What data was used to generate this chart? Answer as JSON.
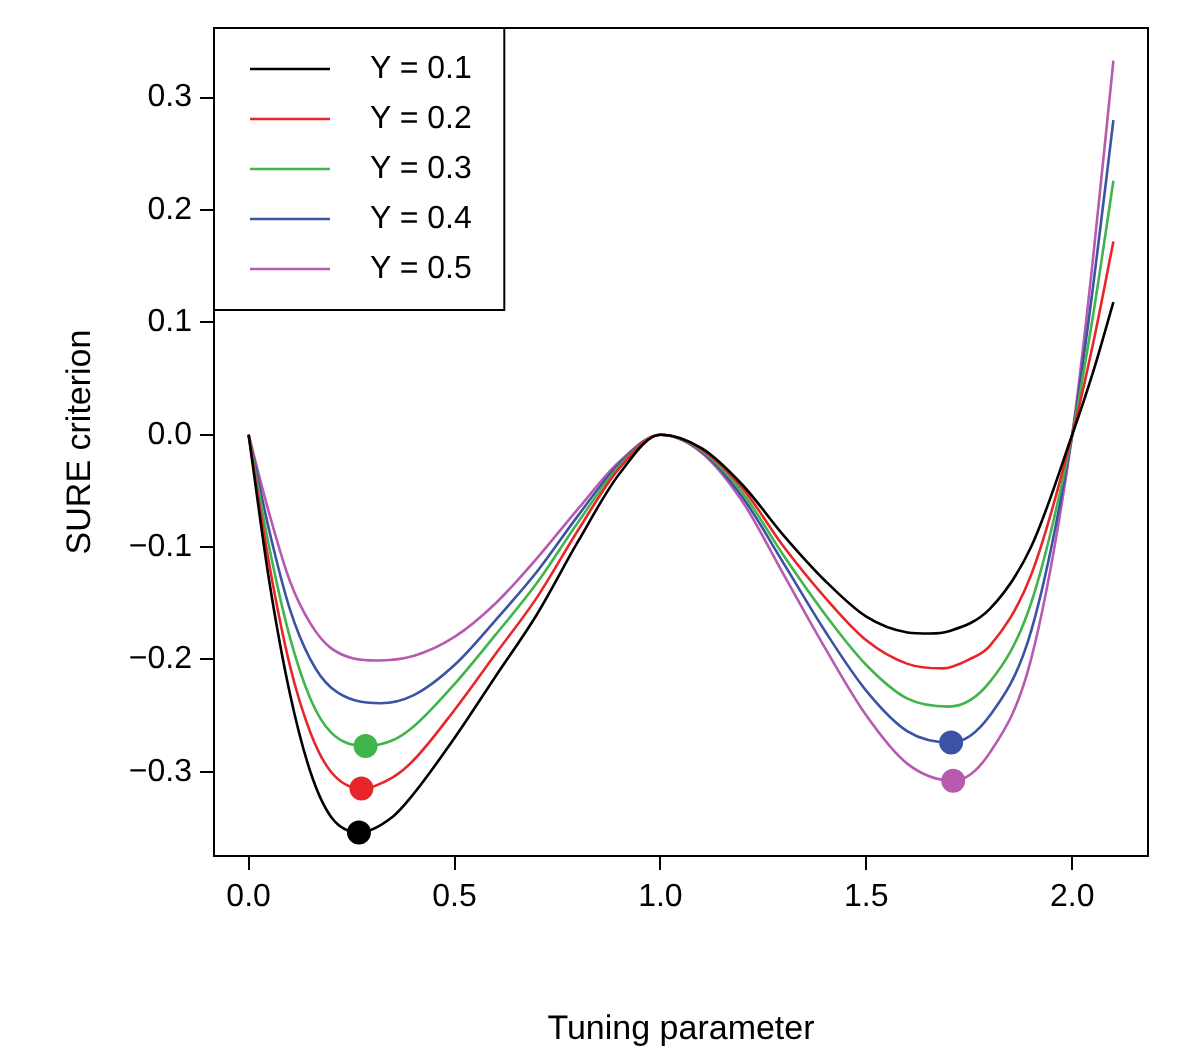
{
  "chart_data": {
    "type": "line",
    "xlabel": "Tuning parameter",
    "ylabel": "SURE criterion",
    "xlim": [
      -0.084,
      2.184
    ],
    "ylim": [
      -0.375,
      0.362
    ],
    "xticks": [
      {
        "value": 0,
        "label": "0.0"
      },
      0.5,
      {
        "value": 1,
        "label": "1.0"
      },
      1.5,
      {
        "value": 2,
        "label": "2.0"
      }
    ],
    "yticks": [
      {
        "value": -0.3,
        "label": "−0.3"
      },
      {
        "value": -0.2,
        "label": "−0.2"
      },
      {
        "value": -0.1,
        "label": "−0.1"
      },
      {
        "value": 0,
        "label": "0.0"
      },
      0.1,
      0.2,
      0.3
    ],
    "grid": false,
    "legend": "top left",
    "series": [
      {
        "name": "Y = 0.1",
        "color": "#000000",
        "x": [
          0,
          0.05,
          0.1,
          0.15,
          0.2,
          0.268,
          0.35,
          0.4,
          0.5,
          0.6,
          0.7,
          0.8,
          0.9,
          1,
          1.1,
          1.2,
          1.3,
          1.4,
          1.5,
          1.6,
          1.654,
          1.7,
          1.8,
          1.9,
          2,
          2.05,
          2.1
        ],
        "values": [
          0,
          -0.13,
          -0.23,
          -0.3,
          -0.34,
          -0.354,
          -0.34,
          -0.32,
          -0.27,
          -0.215,
          -0.16,
          -0.095,
          -0.035,
          0,
          -0.012,
          -0.045,
          -0.09,
          -0.13,
          -0.162,
          -0.176,
          -0.177,
          -0.175,
          -0.155,
          -0.1,
          0,
          0.055,
          0.118
        ]
      },
      {
        "name": "Y = 0.2",
        "color": "#e8262a",
        "x": [
          0,
          0.05,
          0.1,
          0.15,
          0.2,
          0.274,
          0.35,
          0.4,
          0.5,
          0.6,
          0.7,
          0.8,
          0.9,
          1,
          1.1,
          1.2,
          1.3,
          1.4,
          1.5,
          1.6,
          1.685,
          1.75,
          1.8,
          1.9,
          2,
          2.05,
          2.1
        ],
        "values": [
          0,
          -0.115,
          -0.205,
          -0.265,
          -0.3,
          -0.315,
          -0.305,
          -0.29,
          -0.245,
          -0.195,
          -0.145,
          -0.085,
          -0.03,
          0,
          -0.013,
          -0.048,
          -0.1,
          -0.145,
          -0.183,
          -0.204,
          -0.208,
          -0.2,
          -0.188,
          -0.125,
          0,
          0.08,
          0.172
        ]
      },
      {
        "name": "Y = 0.3",
        "color": "#3fb54a",
        "x": [
          0,
          0.05,
          0.1,
          0.15,
          0.2,
          0.284,
          0.35,
          0.4,
          0.5,
          0.6,
          0.7,
          0.8,
          0.9,
          1,
          1.1,
          1.2,
          1.3,
          1.4,
          1.5,
          1.6,
          1.7,
          1.8,
          1.9,
          2,
          2.05,
          2.1
        ],
        "values": [
          0,
          -0.1,
          -0.18,
          -0.235,
          -0.265,
          -0.277,
          -0.272,
          -0.26,
          -0.222,
          -0.178,
          -0.132,
          -0.078,
          -0.028,
          0,
          -0.014,
          -0.052,
          -0.108,
          -0.16,
          -0.205,
          -0.235,
          -0.242,
          -0.22,
          -0.15,
          0,
          0.105,
          0.226
        ]
      },
      {
        "name": "Y = 0.4",
        "color": "#3b53a4",
        "x": [
          0,
          0.05,
          0.1,
          0.15,
          0.2,
          0.32,
          0.4,
          0.5,
          0.6,
          0.7,
          0.8,
          0.9,
          1,
          1.1,
          1.2,
          1.3,
          1.4,
          1.5,
          1.6,
          1.706,
          1.8,
          1.9,
          2,
          2.05,
          2.1
        ],
        "values": [
          0,
          -0.085,
          -0.155,
          -0.2,
          -0.225,
          -0.239,
          -0.232,
          -0.205,
          -0.165,
          -0.122,
          -0.072,
          -0.026,
          0,
          -0.015,
          -0.056,
          -0.115,
          -0.175,
          -0.228,
          -0.264,
          -0.274,
          -0.25,
          -0.175,
          0,
          0.13,
          0.28
        ]
      },
      {
        "name": "Y = 0.5",
        "color": "#b85ab0",
        "x": [
          0,
          0.05,
          0.1,
          0.15,
          0.2,
          0.31,
          0.4,
          0.5,
          0.6,
          0.7,
          0.8,
          0.9,
          1,
          1.1,
          1.2,
          1.3,
          1.4,
          1.5,
          1.6,
          1.711,
          1.8,
          1.9,
          2,
          2.05,
          2.1
        ],
        "values": [
          0,
          -0.07,
          -0.13,
          -0.168,
          -0.19,
          -0.201,
          -0.197,
          -0.18,
          -0.15,
          -0.11,
          -0.066,
          -0.024,
          0,
          -0.016,
          -0.06,
          -0.125,
          -0.19,
          -0.25,
          -0.293,
          -0.308,
          -0.283,
          -0.2,
          0,
          0.155,
          0.333
        ]
      },
      {
        "type": "scatter",
        "x": [
          0.268,
          0.274,
          0.284,
          1.706,
          1.711
        ],
        "values": [
          -0.354,
          -0.315,
          -0.277,
          -0.274,
          -0.308
        ],
        "colors": [
          "#000000",
          "#e8262a",
          "#3fb54a",
          "#3b53a4",
          "#b85ab0"
        ]
      }
    ]
  }
}
